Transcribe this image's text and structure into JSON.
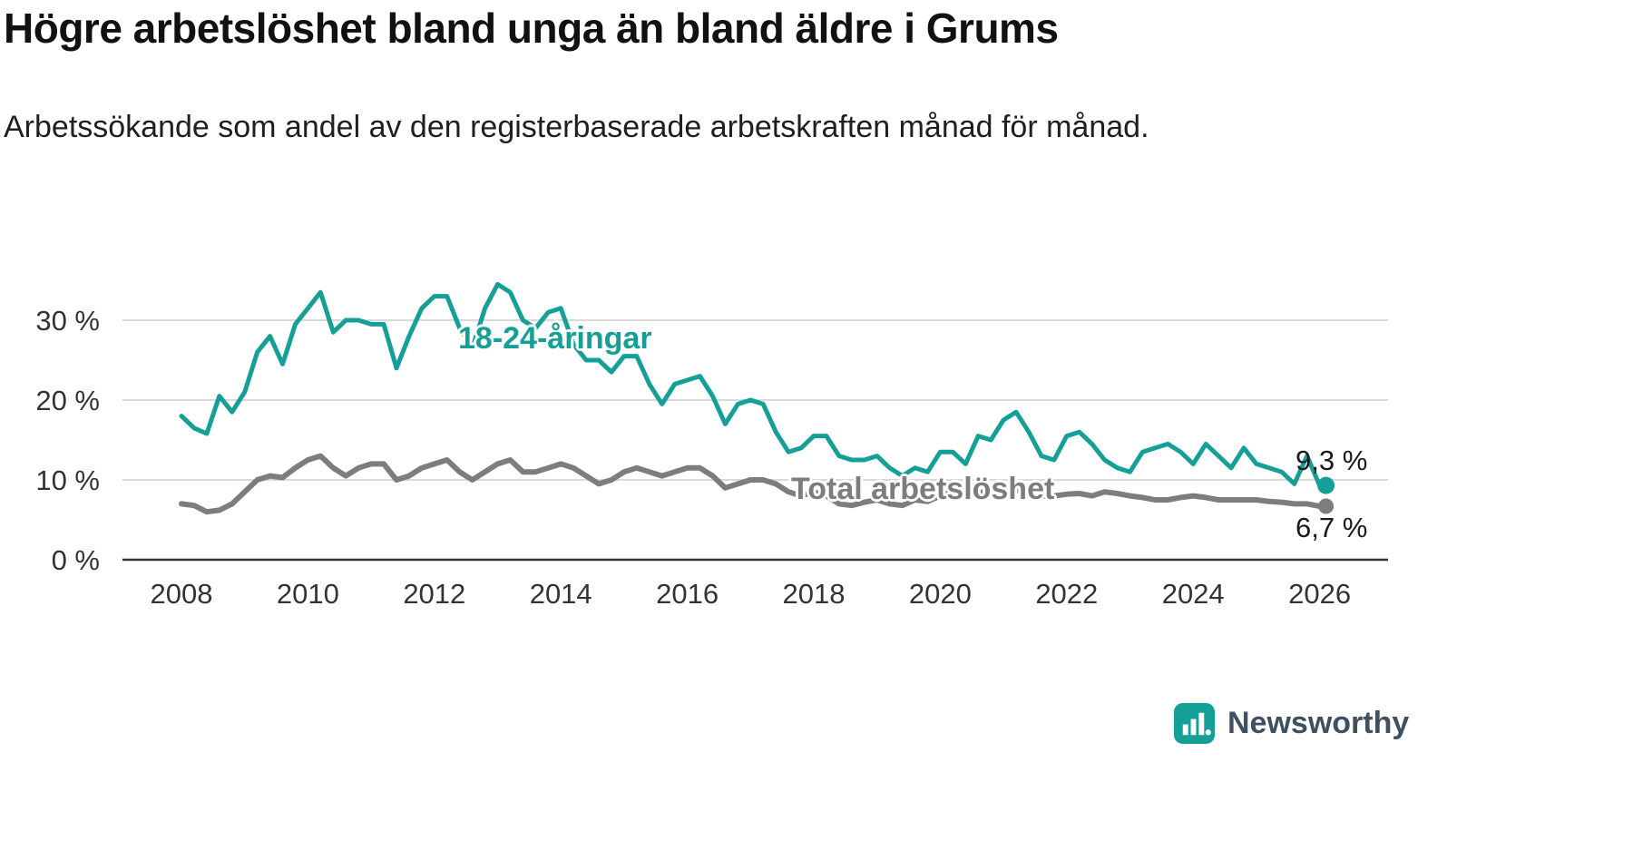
{
  "title": "Högre arbetslöshet bland unga än bland äldre i Grums",
  "subtitle": "Arbetssökande som andel av den registerbaserade arbetskraften månad för månad.",
  "colors": {
    "youth_line": "#14a096",
    "total_line": "#7d7d7d",
    "grid": "#d9d9d9",
    "axis": "#333333",
    "text": "#1a1a1a",
    "brand_teal": "#14a096",
    "brand_text": "#3f5060"
  },
  "branding": {
    "name": "Newsworthy"
  },
  "chart_data": {
    "type": "line",
    "title": "Högre arbetslöshet bland unga än bland äldre i Grums",
    "subtitle": "Arbetssökande som andel av den registerbaserade arbetskraften månad för månad.",
    "xlabel": "",
    "ylabel": "",
    "grid": "horizontal",
    "legend_position": "inline",
    "ylim": [
      0,
      36
    ],
    "xlim": [
      2007,
      2027.2
    ],
    "y_ticks": [
      {
        "value": 30,
        "label": "30 %"
      },
      {
        "value": 20,
        "label": "20 %"
      },
      {
        "value": 10,
        "label": "10 %"
      },
      {
        "value": 0,
        "label": "0 %"
      }
    ],
    "x_ticks": [
      2008,
      2010,
      2012,
      2014,
      2016,
      2018,
      2020,
      2022,
      2024,
      2026
    ],
    "x": [
      2008,
      2008.2,
      2008.4,
      2008.6,
      2008.8,
      2009,
      2009.2,
      2009.4,
      2009.6,
      2009.8,
      2010,
      2010.2,
      2010.4,
      2010.6,
      2010.8,
      2011,
      2011.2,
      2011.4,
      2011.6,
      2011.8,
      2012,
      2012.2,
      2012.4,
      2012.6,
      2012.8,
      2013,
      2013.2,
      2013.4,
      2013.6,
      2013.8,
      2014,
      2014.2,
      2014.4,
      2014.6,
      2014.8,
      2015,
      2015.2,
      2015.4,
      2015.6,
      2015.8,
      2016,
      2016.2,
      2016.4,
      2016.6,
      2016.8,
      2017,
      2017.2,
      2017.4,
      2017.6,
      2017.8,
      2018,
      2018.2,
      2018.4,
      2018.6,
      2018.8,
      2019,
      2019.2,
      2019.4,
      2019.6,
      2019.8,
      2020,
      2020.2,
      2020.4,
      2020.6,
      2020.8,
      2021,
      2021.2,
      2021.4,
      2021.6,
      2021.8,
      2022,
      2022.2,
      2022.4,
      2022.6,
      2022.8,
      2023,
      2023.2,
      2023.4,
      2023.6,
      2023.8,
      2024,
      2024.2,
      2024.4,
      2024.6,
      2024.8,
      2025,
      2025.2,
      2025.4,
      2025.6,
      2025.8,
      2026
    ],
    "series": [
      {
        "name": "18-24-åringar",
        "color": "#14a096",
        "end_label": "9,3 %",
        "end_value": 9.3,
        "values": [
          18,
          16.5,
          15.8,
          20.5,
          18.5,
          21,
          26,
          28,
          24.5,
          29.5,
          31.5,
          33.5,
          28.5,
          30,
          30,
          29.5,
          29.5,
          24,
          28,
          31.5,
          33,
          33,
          29,
          26.5,
          31.5,
          34.5,
          33.5,
          30,
          29,
          31,
          31.5,
          27,
          25,
          25,
          23.5,
          25.5,
          25.5,
          22,
          19.5,
          22,
          22.5,
          23,
          20.5,
          17,
          19.5,
          20,
          19.5,
          16,
          13.5,
          14,
          15.5,
          15.5,
          13,
          12.5,
          12.5,
          13,
          11.5,
          10.5,
          11.5,
          11,
          13.5,
          13.5,
          12,
          15.5,
          15,
          17.5,
          18.5,
          16,
          13,
          12.5,
          15.5,
          16,
          14.5,
          12.5,
          11.5,
          11,
          13.5,
          14,
          14.5,
          13.5,
          12,
          14.5,
          13,
          11.5,
          14,
          12,
          11.5,
          11,
          9.5,
          13,
          9.3
        ]
      },
      {
        "name": "Total arbetslöshet",
        "color": "#7d7d7d",
        "end_label": "6,7 %",
        "end_value": 6.7,
        "values": [
          7,
          6.8,
          6,
          6.2,
          7,
          8.5,
          10,
          10.5,
          10.3,
          11.5,
          12.5,
          13,
          11.5,
          10.5,
          11.5,
          12,
          12,
          10,
          10.5,
          11.5,
          12,
          12.5,
          11,
          10,
          11,
          12,
          12.5,
          11,
          11,
          11.5,
          12,
          11.5,
          10.5,
          9.5,
          10,
          11,
          11.5,
          11,
          10.5,
          11,
          11.5,
          11.5,
          10.5,
          9,
          9.5,
          10,
          10,
          9.5,
          8.5,
          8,
          8.5,
          8,
          7,
          6.8,
          7.2,
          7.5,
          7,
          6.8,
          7.5,
          7.3,
          8,
          8.5,
          8.3,
          8.5,
          8.3,
          8.5,
          8.7,
          8.3,
          8,
          8,
          8.2,
          8.3,
          8,
          8.5,
          8.3,
          8,
          7.8,
          7.5,
          7.5,
          7.8,
          8,
          7.8,
          7.5,
          7.5,
          7.5,
          7.5,
          7.3,
          7.2,
          7,
          7,
          6.7
        ]
      }
    ]
  }
}
